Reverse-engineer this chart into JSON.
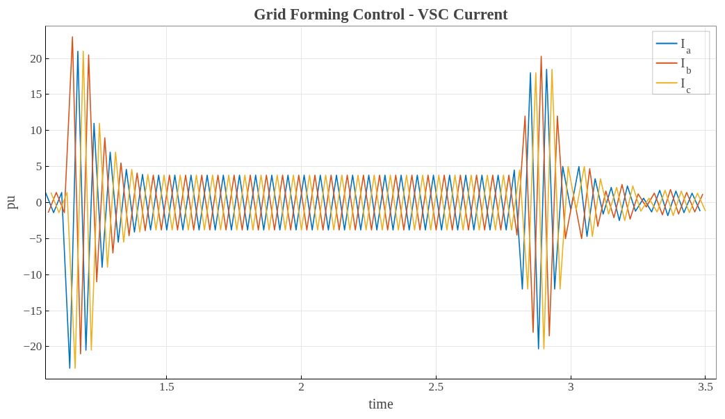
{
  "chart_data": {
    "type": "line",
    "title": "Grid Forming Control - VSC Current",
    "xlabel": "time",
    "ylabel": "pu",
    "xlim": [
      1.05,
      3.54
    ],
    "ylim": [
      -24.5,
      24.5
    ],
    "xticks": [
      1.5,
      2,
      2.5,
      3,
      3.5
    ],
    "yticks": [
      -20,
      -15,
      -10,
      -5,
      0,
      5,
      10,
      15,
      20
    ],
    "grid": true,
    "legend": "top right",
    "line_style": "solid",
    "marker": "none",
    "series": [
      {
        "name": "I$_{a}$",
        "color": "#0072bd",
        "x": [
          1.05,
          1.08,
          1.11,
          1.14,
          1.17,
          1.2,
          1.23,
          1.26,
          1.29,
          1.32,
          1.35,
          1.38,
          1.41,
          1.44,
          1.47,
          1.5,
          1.53,
          1.56,
          1.59,
          1.62,
          1.65,
          1.68,
          1.71,
          1.74,
          1.77,
          1.8,
          1.83,
          1.86,
          1.89,
          1.92,
          1.95,
          1.98,
          2.01,
          2.04,
          2.07,
          2.1,
          2.13,
          2.16,
          2.19,
          2.22,
          2.25,
          2.28,
          2.31,
          2.34,
          2.37,
          2.4,
          2.43,
          2.46,
          2.49,
          2.52,
          2.55,
          2.58,
          2.61,
          2.64,
          2.67,
          2.7,
          2.73,
          2.76,
          2.79,
          2.82,
          2.85,
          2.88,
          2.91,
          2.94,
          2.97,
          3.0,
          3.03,
          3.06,
          3.09,
          3.12,
          3.15,
          3.18,
          3.21,
          3.24,
          3.27,
          3.3,
          3.33,
          3.36,
          3.39,
          3.42,
          3.45,
          3.48
        ],
        "values": [
          1.4,
          -1.4,
          1.4,
          -23,
          21,
          -20.5,
          11,
          -9,
          7,
          -5.5,
          4.6,
          -4.1,
          3.9,
          -3.8,
          3.8,
          -3.8,
          3.8,
          -3.8,
          3.8,
          -3.8,
          3.8,
          -3.8,
          3.8,
          -3.8,
          3.8,
          -3.8,
          3.8,
          -3.8,
          3.8,
          -3.8,
          3.8,
          -3.8,
          3.8,
          -3.8,
          3.8,
          -3.8,
          3.8,
          -3.8,
          3.8,
          -3.8,
          3.8,
          -3.8,
          3.8,
          -3.8,
          3.8,
          -3.8,
          3.8,
          -3.8,
          3.8,
          -3.8,
          3.8,
          -3.8,
          3.8,
          -3.8,
          3.8,
          -3.8,
          3.8,
          -3.8,
          4.5,
          -12,
          18,
          -20.3,
          18.5,
          -12,
          5,
          -1,
          5,
          -4.7,
          3.3,
          -1.6,
          2.1,
          -2.5,
          2.3,
          -1.2,
          0.6,
          -1.3,
          1.7,
          -1.8,
          1.6,
          -1.4,
          1.3,
          -1.2
        ]
      },
      {
        "name": "I$_{b}$",
        "color": "#d95319",
        "x": [
          1.06,
          1.09,
          1.12,
          1.15,
          1.18,
          1.21,
          1.24,
          1.27,
          1.3,
          1.33,
          1.36,
          1.39,
          1.42,
          1.45,
          1.48,
          1.51,
          1.54,
          1.57,
          1.6,
          1.63,
          1.66,
          1.69,
          1.72,
          1.75,
          1.78,
          1.81,
          1.84,
          1.87,
          1.9,
          1.93,
          1.96,
          1.99,
          2.02,
          2.05,
          2.08,
          2.11,
          2.14,
          2.17,
          2.2,
          2.23,
          2.26,
          2.29,
          2.32,
          2.35,
          2.38,
          2.41,
          2.44,
          2.47,
          2.5,
          2.53,
          2.56,
          2.59,
          2.62,
          2.65,
          2.68,
          2.71,
          2.74,
          2.77,
          2.8,
          2.83,
          2.86,
          2.89,
          2.92,
          2.95,
          2.98,
          3.01,
          3.04,
          3.07,
          3.1,
          3.13,
          3.16,
          3.19,
          3.22,
          3.25,
          3.28,
          3.31,
          3.34,
          3.37,
          3.4,
          3.43,
          3.46,
          3.49
        ],
        "values": [
          -1.4,
          1.4,
          -1.4,
          23,
          -21,
          20.5,
          -11,
          9,
          -7,
          5.5,
          -4.6,
          4.1,
          -3.9,
          3.8,
          -3.8,
          3.8,
          -3.8,
          3.8,
          -3.8,
          3.8,
          -3.8,
          3.8,
          -3.8,
          3.8,
          -3.8,
          3.8,
          -3.8,
          3.8,
          -3.8,
          3.8,
          -3.8,
          3.8,
          -3.8,
          3.8,
          -3.8,
          3.8,
          -3.8,
          3.8,
          -3.8,
          3.8,
          -3.8,
          3.8,
          -3.8,
          3.8,
          -3.8,
          3.8,
          -3.8,
          3.8,
          -3.8,
          3.8,
          -3.8,
          3.8,
          -3.8,
          3.8,
          -3.8,
          3.8,
          -3.8,
          3.8,
          -4.5,
          12,
          -18,
          20.3,
          -18.5,
          12,
          -5,
          1,
          -5,
          4.7,
          -3.3,
          1.6,
          -2.1,
          2.5,
          -2.3,
          1.2,
          -0.6,
          1.3,
          -1.7,
          1.8,
          -1.6,
          1.4,
          -1.3,
          1.2
        ]
      },
      {
        "name": "I$_{c}$",
        "color": "#edb120",
        "x": [
          1.07,
          1.1,
          1.13,
          1.16,
          1.19,
          1.22,
          1.25,
          1.28,
          1.31,
          1.34,
          1.37,
          1.4,
          1.43,
          1.46,
          1.49,
          1.52,
          1.55,
          1.58,
          1.61,
          1.64,
          1.67,
          1.7,
          1.73,
          1.76,
          1.79,
          1.82,
          1.85,
          1.88,
          1.91,
          1.94,
          1.97,
          2.0,
          2.03,
          2.06,
          2.09,
          2.12,
          2.15,
          2.18,
          2.21,
          2.24,
          2.27,
          2.3,
          2.33,
          2.36,
          2.39,
          2.42,
          2.45,
          2.48,
          2.51,
          2.54,
          2.57,
          2.6,
          2.63,
          2.66,
          2.69,
          2.72,
          2.75,
          2.78,
          2.81,
          2.84,
          2.87,
          2.9,
          2.93,
          2.96,
          2.99,
          3.02,
          3.05,
          3.08,
          3.11,
          3.14,
          3.17,
          3.2,
          3.23,
          3.26,
          3.29,
          3.32,
          3.35,
          3.38,
          3.41,
          3.44,
          3.47,
          3.5
        ],
        "values": [
          1.4,
          -1.4,
          1.4,
          -23,
          21,
          -20.5,
          11,
          -9,
          7,
          -5.5,
          4.6,
          -4.1,
          3.9,
          -3.8,
          3.8,
          -3.8,
          3.8,
          -3.8,
          3.8,
          -3.8,
          3.8,
          -3.8,
          3.8,
          -3.8,
          3.8,
          -3.8,
          3.8,
          -3.8,
          3.8,
          -3.8,
          3.8,
          -3.8,
          3.8,
          -3.8,
          3.8,
          -3.8,
          3.8,
          -3.8,
          3.8,
          -3.8,
          3.8,
          -3.8,
          3.8,
          -3.8,
          3.8,
          -3.8,
          3.8,
          -3.8,
          3.8,
          -3.8,
          3.8,
          -3.8,
          3.8,
          -3.8,
          3.8,
          -3.8,
          3.8,
          -3.8,
          4.5,
          -12,
          18,
          -20.3,
          18.5,
          -12,
          5,
          -1,
          5,
          -4.7,
          3.3,
          -1.6,
          2.1,
          -2.5,
          2.3,
          -1.2,
          0.6,
          -1.3,
          1.7,
          -1.8,
          1.6,
          -1.4,
          1.3,
          -1.2
        ]
      }
    ]
  }
}
